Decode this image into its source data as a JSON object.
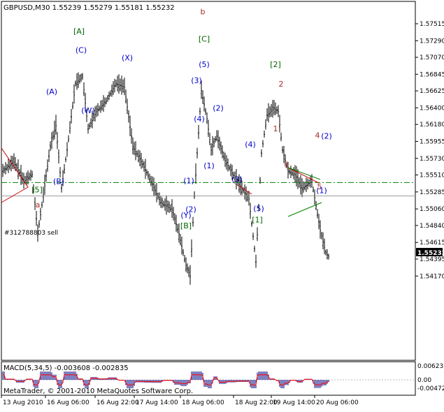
{
  "symbol_header": "GBPUSD,M30  1.55239 1.55279 1.55181 1.55232",
  "order_label": "#312788803 sell",
  "macd_header": "MACD(5,34,5) -0.003608 -0.002835",
  "copyright": "MetaTrader, © 2001-2010 MetaQuotes Software Corp.",
  "current_price_badge": "1.55232",
  "colors": {
    "bars": "#000000",
    "wave_blue": "#0000cc",
    "wave_green": "#006400",
    "wave_red": "#a52a2a",
    "order_line": "#008000",
    "channel_red": "#cc0000",
    "channel_green": "#008000",
    "macd_signal": "#ff0000",
    "macd_hist": "#000080"
  },
  "chart_data": {
    "type": "candlestick",
    "y_ticks": [
      "1.57515",
      "1.57290",
      "1.57070",
      "1.56845",
      "1.56625",
      "1.56400",
      "1.56180",
      "1.55955",
      "1.55730",
      "1.55510",
      "1.55285",
      "1.55060",
      "1.54840",
      "1.54615",
      "1.54395",
      "1.54170"
    ],
    "x_ticks": [
      "13 Aug 2010",
      "16 Aug 06:00",
      "16 Aug 22:00",
      "17 Aug 14:00",
      "18 Aug 06:00",
      "18 Aug 22:00",
      "19 Aug 14:00",
      "20 Aug 06:00"
    ],
    "order_price": 1.5541,
    "last_price": 1.55232,
    "macd_ticks": [
      "0.006233",
      "0.00",
      "-0.00472"
    ],
    "wave_labels": [
      {
        "text": "a",
        "color": "red",
        "price": 1.5508
      },
      {
        "text": "[5]",
        "color": "green",
        "price": 1.5528
      },
      {
        "text": "(A)",
        "color": "blue",
        "price": 1.5658
      },
      {
        "text": "(B)",
        "color": "blue",
        "price": 1.5539
      },
      {
        "text": "(C)",
        "color": "blue",
        "price": 1.5713
      },
      {
        "text": "[A]",
        "color": "green",
        "price": 1.5738
      },
      {
        "text": "(W)",
        "color": "blue",
        "price": 1.5633
      },
      {
        "text": "(X)",
        "color": "blue",
        "price": 1.5703
      },
      {
        "text": "b",
        "color": "red",
        "price": 1.5764
      },
      {
        "text": "[C]",
        "color": "green",
        "price": 1.5728
      },
      {
        "text": "(5)",
        "color": "blue",
        "price": 1.5694
      },
      {
        "text": "(3)",
        "color": "blue",
        "price": 1.5673
      },
      {
        "text": "(4)",
        "color": "blue",
        "price": 1.5622
      },
      {
        "text": "(2)",
        "color": "blue",
        "price": 1.5636
      },
      {
        "text": "(1)",
        "color": "blue",
        "price": 1.556
      },
      {
        "text": "(1)",
        "color": "blue",
        "price": 1.554
      },
      {
        "text": "(2)",
        "color": "blue",
        "price": 1.5502
      },
      {
        "text": "(Y)",
        "color": "blue",
        "price": 1.5494
      },
      {
        "text": "[B]",
        "color": "green",
        "price": 1.548
      },
      {
        "text": "(4)",
        "color": "blue",
        "price": 1.5588
      },
      {
        "text": "(3)",
        "color": "blue",
        "price": 1.5542
      },
      {
        "text": "(5)",
        "color": "blue",
        "price": 1.5503
      },
      {
        "text": "[1]",
        "color": "green",
        "price": 1.5488
      },
      {
        "text": "[2]",
        "color": "green",
        "price": 1.5694
      },
      {
        "text": "2",
        "color": "red",
        "price": 1.5668
      },
      {
        "text": "1",
        "color": "red",
        "price": 1.5609
      },
      {
        "text": "3",
        "color": "red",
        "price": 1.5561
      },
      {
        "text": "4",
        "color": "red",
        "price": 1.56
      },
      {
        "text": "(2)",
        "color": "blue",
        "price": 1.5599
      },
      {
        "text": "5",
        "color": "red",
        "price": 1.5532
      },
      {
        "text": "(1)",
        "color": "blue",
        "price": 1.5527
      }
    ]
  }
}
